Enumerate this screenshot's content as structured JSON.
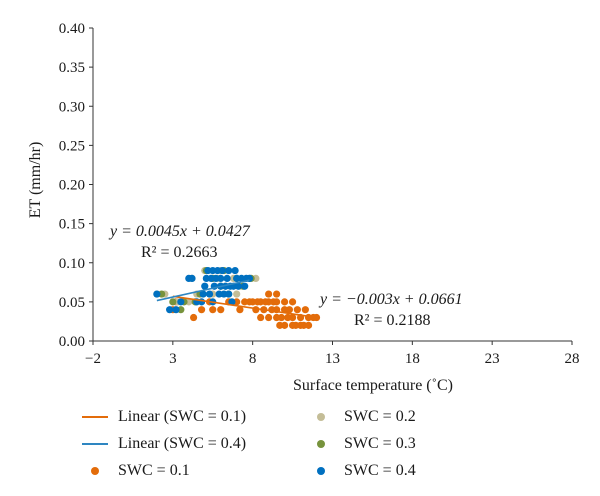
{
  "chart_data": {
    "type": "scatter",
    "title": "",
    "xlabel": "Surface temperature (˚C)",
    "ylabel": "ET (mm/hr)",
    "xlim": [
      -2,
      28
    ],
    "ylim": [
      0,
      0.4
    ],
    "xticks": [
      "−2",
      "3",
      "8",
      "13",
      "18",
      "23",
      "28"
    ],
    "yticks": [
      "0.00",
      "0.05",
      "0.10",
      "0.15",
      "0.20",
      "0.25",
      "0.30",
      "0.35",
      "0.40"
    ],
    "grid": false,
    "legend_position": "bottom",
    "series": [
      {
        "name": "SWC = 0.1",
        "color": "#e36c0a",
        "points": [
          [
            3.0,
            0.04
          ],
          [
            3.2,
            0.05
          ],
          [
            4.3,
            0.03
          ],
          [
            4.8,
            0.04
          ],
          [
            5.3,
            0.05
          ],
          [
            5.5,
            0.04
          ],
          [
            6.0,
            0.04
          ],
          [
            6.5,
            0.05
          ],
          [
            7.0,
            0.05
          ],
          [
            7.2,
            0.04
          ],
          [
            7.5,
            0.05
          ],
          [
            7.8,
            0.05
          ],
          [
            8.0,
            0.05
          ],
          [
            8.2,
            0.04
          ],
          [
            8.3,
            0.05
          ],
          [
            8.5,
            0.05
          ],
          [
            8.5,
            0.03
          ],
          [
            8.7,
            0.04
          ],
          [
            8.8,
            0.05
          ],
          [
            9.0,
            0.05
          ],
          [
            9.0,
            0.06
          ],
          [
            9.0,
            0.03
          ],
          [
            9.2,
            0.04
          ],
          [
            9.3,
            0.05
          ],
          [
            9.5,
            0.03
          ],
          [
            9.5,
            0.04
          ],
          [
            9.5,
            0.05
          ],
          [
            9.5,
            0.06
          ],
          [
            9.7,
            0.02
          ],
          [
            9.8,
            0.03
          ],
          [
            10.0,
            0.04
          ],
          [
            10.0,
            0.05
          ],
          [
            10.0,
            0.02
          ],
          [
            10.2,
            0.03
          ],
          [
            10.3,
            0.04
          ],
          [
            10.5,
            0.05
          ],
          [
            10.5,
            0.03
          ],
          [
            10.5,
            0.02
          ],
          [
            10.8,
            0.04
          ],
          [
            11.0,
            0.03
          ],
          [
            11.0,
            0.02
          ],
          [
            11.3,
            0.04
          ],
          [
            11.5,
            0.03
          ],
          [
            11.5,
            0.02
          ],
          [
            11.8,
            0.03
          ],
          [
            12.0,
            0.03
          ],
          [
            10.7,
            0.02
          ],
          [
            11.2,
            0.02
          ]
        ]
      },
      {
        "name": "SWC = 0.2",
        "color": "#c4bd97",
        "points": [
          [
            2.0,
            0.06
          ],
          [
            2.5,
            0.06
          ],
          [
            3.3,
            0.05
          ],
          [
            4.0,
            0.05
          ],
          [
            4.5,
            0.06
          ],
          [
            5.0,
            0.09
          ],
          [
            5.8,
            0.08
          ],
          [
            6.3,
            0.07
          ],
          [
            6.8,
            0.08
          ],
          [
            7.2,
            0.07
          ],
          [
            7.8,
            0.08
          ],
          [
            8.2,
            0.08
          ],
          [
            5.5,
            0.06
          ],
          [
            7.0,
            0.06
          ],
          [
            6.0,
            0.09
          ],
          [
            4.2,
            0.08
          ]
        ]
      },
      {
        "name": "SWC = 0.3",
        "color": "#77933c",
        "points": [
          [
            2.3,
            0.06
          ],
          [
            3.0,
            0.05
          ],
          [
            3.7,
            0.05
          ],
          [
            4.4,
            0.05
          ],
          [
            5.1,
            0.09
          ],
          [
            5.5,
            0.08
          ],
          [
            6.0,
            0.07
          ],
          [
            6.5,
            0.06
          ],
          [
            7.0,
            0.08
          ],
          [
            7.4,
            0.07
          ],
          [
            7.9,
            0.08
          ],
          [
            4.7,
            0.06
          ],
          [
            6.2,
            0.09
          ],
          [
            3.5,
            0.04
          ]
        ]
      },
      {
        "name": "SWC = 0.4",
        "color": "#0070c0",
        "points": [
          [
            2.0,
            0.06
          ],
          [
            2.8,
            0.04
          ],
          [
            3.2,
            0.04
          ],
          [
            3.5,
            0.05
          ],
          [
            4.0,
            0.08
          ],
          [
            4.2,
            0.08
          ],
          [
            4.5,
            0.05
          ],
          [
            4.9,
            0.06
          ],
          [
            5.0,
            0.07
          ],
          [
            5.2,
            0.09
          ],
          [
            5.3,
            0.06
          ],
          [
            5.4,
            0.08
          ],
          [
            5.5,
            0.09
          ],
          [
            5.6,
            0.07
          ],
          [
            5.7,
            0.08
          ],
          [
            5.8,
            0.09
          ],
          [
            5.9,
            0.06
          ],
          [
            6.0,
            0.07
          ],
          [
            6.0,
            0.08
          ],
          [
            6.1,
            0.09
          ],
          [
            6.2,
            0.06
          ],
          [
            6.3,
            0.07
          ],
          [
            6.4,
            0.08
          ],
          [
            6.5,
            0.09
          ],
          [
            6.5,
            0.06
          ],
          [
            6.6,
            0.07
          ],
          [
            6.8,
            0.07
          ],
          [
            6.9,
            0.09
          ],
          [
            7.0,
            0.08
          ],
          [
            7.1,
            0.07
          ],
          [
            7.3,
            0.08
          ],
          [
            7.5,
            0.07
          ],
          [
            7.6,
            0.08
          ],
          [
            7.8,
            0.08
          ],
          [
            5.1,
            0.08
          ],
          [
            4.8,
            0.05
          ],
          [
            6.7,
            0.05
          ],
          [
            5.5,
            0.05
          ]
        ]
      }
    ],
    "trendlines": [
      {
        "name": "Linear (SWC = 0.1)",
        "color": "#e36c0a",
        "slope": -0.003,
        "intercept": 0.0661,
        "x_range": [
          3,
          11.5
        ]
      },
      {
        "name": "Linear (SWC = 0.4)",
        "color": "#2e86c1",
        "slope": 0.0045,
        "intercept": 0.0427,
        "x_range": [
          2,
          7.8
        ]
      }
    ],
    "annotations": [
      {
        "eq": "y = 0.0045x + 0.0427",
        "r2": "R² = 0.2663"
      },
      {
        "eq": "y = −0.003x + 0.0661",
        "r2": "R² = 0.2188"
      }
    ],
    "legend": [
      {
        "label": "Linear (SWC = 0.1)",
        "kind": "line",
        "color": "#e36c0a"
      },
      {
        "label": "SWC = 0.2",
        "kind": "dot",
        "color": "#c4bd97"
      },
      {
        "label": "Linear (SWC = 0.4)",
        "kind": "line",
        "color": "#2e86c1"
      },
      {
        "label": "SWC = 0.3",
        "kind": "dot",
        "color": "#77933c"
      },
      {
        "label": "SWC = 0.1",
        "kind": "dot",
        "color": "#e36c0a"
      },
      {
        "label": "SWC = 0.4",
        "kind": "dot",
        "color": "#0070c0"
      }
    ]
  }
}
